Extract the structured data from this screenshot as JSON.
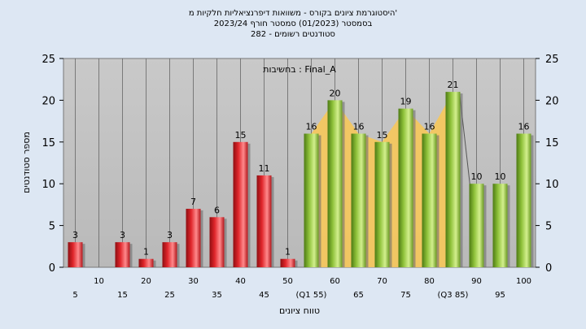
{
  "chart_data": {
    "type": "bar",
    "title_lines": [
      "היסטוגרמת ציונים בקורס - משוואות דיפרנציאליות חלקיות מ'",
      "בסמסטר  (01/2023)  סמסטר חורף  2023/24",
      "282 - סטודנטים רשומים"
    ],
    "annotation": "בחשיבות : Final_A",
    "xlabel": "טווח ציונים",
    "ylabel": "מספר סטודנטים",
    "ylim": [
      0,
      25
    ],
    "yticks": [
      0,
      5,
      10,
      15,
      20,
      25
    ],
    "categories": [
      "5",
      "10",
      "15",
      "20",
      "25",
      "30",
      "35",
      "40",
      "45",
      "50",
      "(Q1 55)",
      "60",
      "65",
      "70",
      "75",
      "80",
      "(Q3 85)",
      "90",
      "95",
      "100"
    ],
    "values": [
      3,
      0,
      3,
      1,
      3,
      7,
      6,
      15,
      11,
      1,
      16,
      20,
      16,
      15,
      19,
      16,
      21,
      10,
      10,
      16
    ],
    "data_labels": [
      "3",
      "",
      "3",
      "1",
      "3",
      "7",
      "6",
      "15",
      "11",
      "1",
      "16",
      "20",
      "16",
      "15",
      "19",
      "16",
      "21",
      "10",
      "10",
      "16"
    ],
    "colors": {
      "fail": "#e0262b",
      "pass": "#8fc23a",
      "band": "#f7c85a",
      "plot_bg": "#c0c0c0",
      "page_bg": "#dde7f3"
    },
    "pass_from_index": 10,
    "band_from_index": 10,
    "band_to_index": 16,
    "grid": true
  }
}
